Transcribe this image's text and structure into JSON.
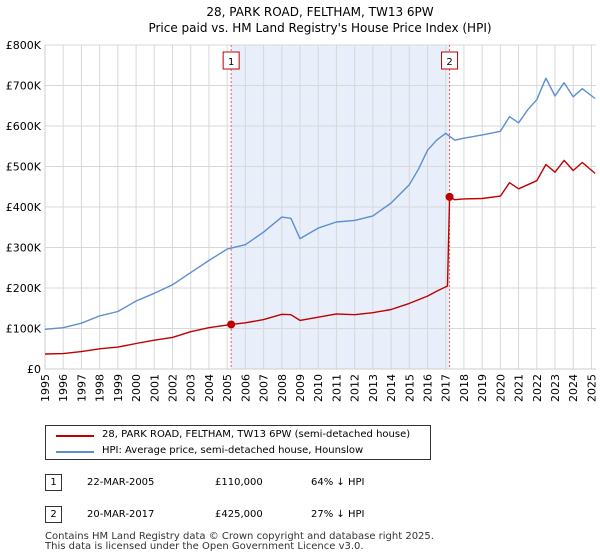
{
  "chart_data": {
    "type": "line",
    "title": "28, PARK ROAD, FELTHAM, TW13 6PW",
    "subtitle": "Price paid vs. HM Land Registry's House Price Index (HPI)",
    "xlim": [
      1995,
      2025.25
    ],
    "ylim": [
      0,
      800000
    ],
    "y_ticks": [
      {
        "value": 0,
        "label": "£0"
      },
      {
        "value": 100000,
        "label": "£100K"
      },
      {
        "value": 200000,
        "label": "£200K"
      },
      {
        "value": 300000,
        "label": "£300K"
      },
      {
        "value": 400000,
        "label": "£400K"
      },
      {
        "value": 500000,
        "label": "£500K"
      },
      {
        "value": 600000,
        "label": "£600K"
      },
      {
        "value": 700000,
        "label": "£700K"
      },
      {
        "value": 800000,
        "label": "£800K"
      }
    ],
    "x_ticks": [
      "1995",
      "1996",
      "1997",
      "1998",
      "1999",
      "2000",
      "2001",
      "2002",
      "2003",
      "2004",
      "2005",
      "2006",
      "2007",
      "2008",
      "2009",
      "2010",
      "2011",
      "2012",
      "2013",
      "2014",
      "2015",
      "2016",
      "2017",
      "2018",
      "2019",
      "2020",
      "2021",
      "2022",
      "2023",
      "2024",
      "2025"
    ],
    "grid": true,
    "shaded_region": {
      "from": 2005.22,
      "to": 2017.21,
      "color": "#e8eefa"
    },
    "series": [
      {
        "name": "28, PARK ROAD, FELTHAM, TW13 6PW (semi-detached house)",
        "color": "#c00000",
        "x": [
          1995,
          1996,
          1997,
          1998,
          1999,
          2000,
          2001,
          2002,
          2003,
          2004,
          2005.22,
          2006,
          2007,
          2008,
          2008.5,
          2009,
          2010,
          2011,
          2012,
          2013,
          2014,
          2015,
          2016,
          2016.5,
          2017.1,
          2017.21,
          2017.5,
          2018,
          2019,
          2020,
          2020.5,
          2021,
          2022,
          2022.5,
          2023,
          2023.5,
          2024,
          2024.5,
          2025.2
        ],
        "y": [
          37000,
          38000,
          43000,
          50000,
          54000,
          63000,
          71000,
          78000,
          92000,
          102000,
          110000,
          114000,
          122000,
          135000,
          134000,
          120000,
          128000,
          136000,
          134000,
          139000,
          147000,
          162000,
          180000,
          192000,
          205000,
          425000,
          418000,
          420000,
          421000,
          427000,
          460000,
          445000,
          465000,
          505000,
          486000,
          515000,
          490000,
          510000,
          483000
        ]
      },
      {
        "name": "HPI: Average price, semi-detached house, Hounslow",
        "color": "#5b8fd0",
        "x": [
          1995,
          1996,
          1997,
          1998,
          1999,
          2000,
          2001,
          2002,
          2003,
          2004,
          2005,
          2006,
          2007,
          2008,
          2008.5,
          2009,
          2010,
          2011,
          2012,
          2013,
          2014,
          2015,
          2015.5,
          2016,
          2016.5,
          2017,
          2017.5,
          2018,
          2019,
          2020,
          2020.5,
          2021,
          2021.5,
          2022,
          2022.5,
          2023,
          2023.5,
          2024,
          2024.5,
          2025.2
        ],
        "y": [
          98000,
          102000,
          113000,
          131000,
          142000,
          168000,
          187000,
          208000,
          238000,
          268000,
          296000,
          307000,
          338000,
          375000,
          372000,
          322000,
          348000,
          363000,
          367000,
          378000,
          410000,
          455000,
          493000,
          540000,
          565000,
          582000,
          565000,
          570000,
          578000,
          587000,
          623000,
          608000,
          640000,
          665000,
          718000,
          674000,
          707000,
          672000,
          692000,
          668000
        ]
      }
    ],
    "markers": [
      {
        "label": "1",
        "x": 2005.22,
        "y": 110000,
        "date": "22-MAR-2005",
        "price": "£110,000",
        "hpi": "64% ↓ HPI"
      },
      {
        "label": "2",
        "x": 2017.21,
        "y": 425000,
        "date": "20-MAR-2017",
        "price": "£425,000",
        "hpi": "27% ↓ HPI"
      }
    ]
  },
  "legend": {
    "property": "28, PARK ROAD, FELTHAM, TW13 6PW (semi-detached house)",
    "hpi": "HPI: Average price, semi-detached house, Hounslow"
  },
  "sales": [
    {
      "num": "1",
      "date": "22-MAR-2005",
      "price": "£110,000",
      "hpi": "64% ↓ HPI"
    },
    {
      "num": "2",
      "date": "20-MAR-2017",
      "price": "£425,000",
      "hpi": "27% ↓ HPI"
    }
  ],
  "footer": {
    "line1": "Contains HM Land Registry data © Crown copyright and database right 2025.",
    "line2": "This data is licensed under the Open Government Licence v3.0."
  }
}
